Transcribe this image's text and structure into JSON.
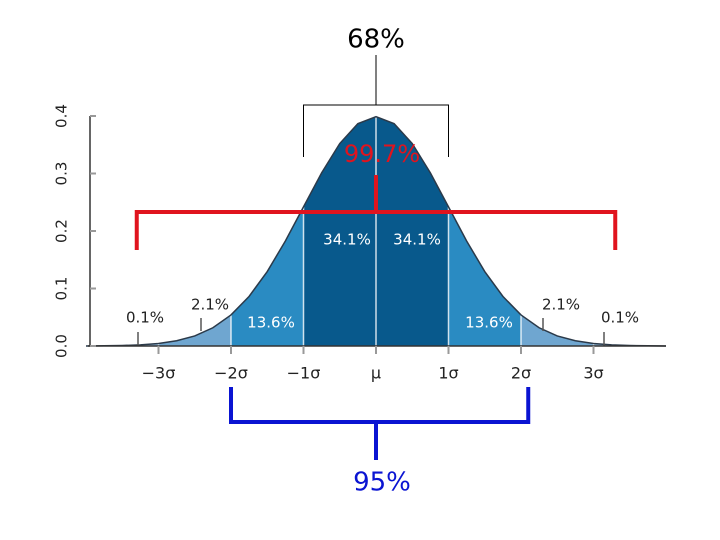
{
  "chart_data": {
    "type": "area",
    "x": [
      -4,
      -3.75,
      -3.5,
      -3.25,
      -3,
      -2.75,
      -2.5,
      -2.25,
      -2,
      -1.75,
      -1.5,
      -1.25,
      -1,
      -0.75,
      -0.5,
      -0.25,
      0,
      0.25,
      0.5,
      0.75,
      1,
      1.25,
      1.5,
      1.75,
      2,
      2.25,
      2.5,
      2.75,
      3,
      3.25,
      3.5,
      3.75,
      4
    ],
    "values": [
      0.0001,
      0.0004,
      0.0009,
      0.002,
      0.0044,
      0.0091,
      0.0175,
      0.0317,
      0.054,
      0.0863,
      0.1295,
      0.1826,
      0.242,
      0.3011,
      0.3521,
      0.3867,
      0.3989,
      0.3867,
      0.3521,
      0.3011,
      0.242,
      0.1826,
      0.1295,
      0.0863,
      0.054,
      0.0317,
      0.0175,
      0.0091,
      0.0044,
      0.002,
      0.0009,
      0.0004,
      0.0001
    ],
    "color": "#2b3a4a",
    "xlim": [
      -4,
      4
    ],
    "ylim": [
      0,
      0.4
    ],
    "xticks": [
      {
        "value": -3,
        "label": "−3σ"
      },
      {
        "value": -2,
        "label": "−2σ"
      },
      {
        "value": -1,
        "label": "−1σ"
      },
      {
        "value": 0,
        "label": "μ"
      },
      {
        "value": 1,
        "label": "1σ"
      },
      {
        "value": 2,
        "label": "2σ"
      },
      {
        "value": 3,
        "label": "3σ"
      }
    ],
    "yticks": [
      {
        "value": 0,
        "label": "0.0"
      },
      0.1,
      0.2,
      0.3,
      0.4
    ],
    "bands": {
      "edges": [
        -4,
        -3,
        -2,
        -1,
        0,
        1,
        2,
        3,
        4
      ],
      "values": [
        0.1,
        2.1,
        13.6,
        34.1,
        34.1,
        13.6,
        2.1,
        0.1
      ],
      "value_labels": [
        "0.1%",
        "2.1%",
        "13.6%",
        "34.1%",
        "34.1%",
        "13.6%",
        "2.1%",
        "0.1%"
      ],
      "colors": [
        "#8fbbdc",
        "#6fa6d0",
        "#2a8bc2",
        "#08598c",
        "#08598c",
        "#2a8bc2",
        "#6fa6d0",
        "#8fbbdc"
      ]
    },
    "intervals": {
      "values": [
        68,
        99.7,
        95
      ],
      "value_labels": [
        "68%",
        "99.7%",
        "95%"
      ],
      "spans": [
        [
          -1,
          1
        ],
        [
          -3.3,
          3.3
        ],
        [
          -2,
          2.1
        ]
      ],
      "colors": [
        "#000000",
        "#e0141e",
        "#0a14d2"
      ]
    }
  }
}
